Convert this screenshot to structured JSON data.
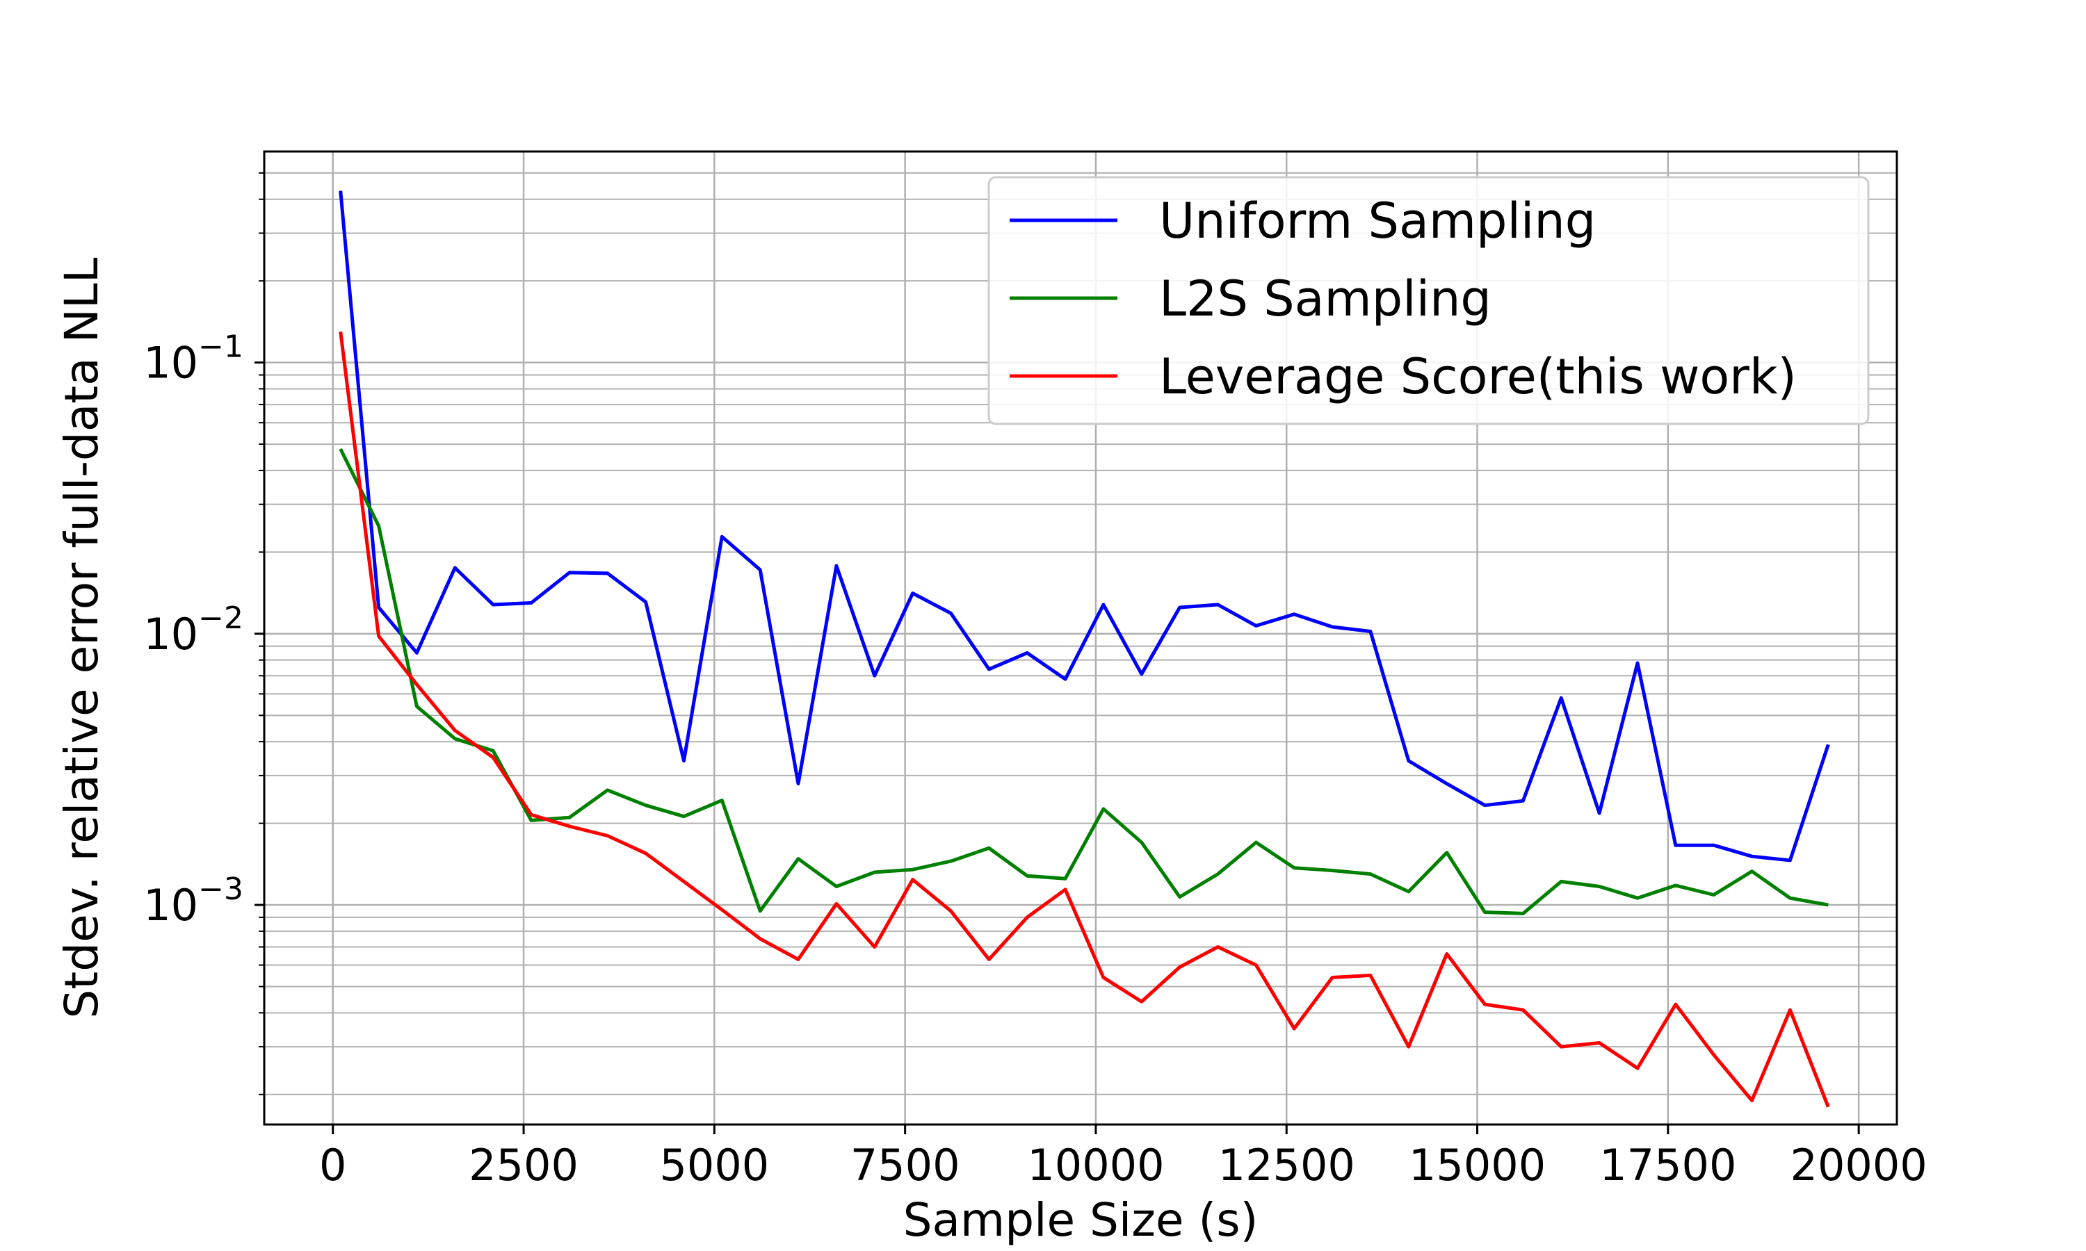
{
  "chart_data": {
    "type": "line",
    "xlabel": "Sample Size (s)",
    "ylabel": "Stdev. relative error full-data NLL",
    "xlim": [
      -900,
      20500
    ],
    "ylim": [
      0.000155,
      0.6
    ],
    "yscale": "log",
    "grid": true,
    "legend_position": "top-right",
    "x_ticks": [
      0,
      2500,
      5000,
      7500,
      10000,
      12500,
      15000,
      17500,
      20000
    ],
    "x_tick_labels": [
      "0",
      "2500",
      "5000",
      "7500",
      "10000",
      "12500",
      "15000",
      "17500",
      "20000"
    ],
    "y_ticks": [
      0.001,
      0.01,
      0.1
    ],
    "y_tick_labels": [
      {
        "base": "10",
        "exp": "−3"
      },
      {
        "base": "10",
        "exp": "−2"
      },
      {
        "base": "10",
        "exp": "−1"
      }
    ],
    "x": [
      100,
      600,
      1100,
      1600,
      2100,
      2600,
      3100,
      3600,
      4100,
      4600,
      5100,
      5600,
      6100,
      6600,
      7100,
      7600,
      8100,
      8600,
      9100,
      9600,
      10100,
      10600,
      11100,
      11600,
      12100,
      12600,
      13100,
      13600,
      14100,
      14600,
      15100,
      15600,
      16100,
      16600,
      17100,
      17600,
      18100,
      18600,
      19100,
      19600
    ],
    "series": [
      {
        "name": "Uniform Sampling",
        "color": "#0000ff",
        "values": [
          0.43,
          0.0125,
          0.0085,
          0.0175,
          0.0128,
          0.013,
          0.0168,
          0.0167,
          0.0131,
          0.0034,
          0.0228,
          0.0172,
          0.0028,
          0.0178,
          0.007,
          0.0141,
          0.0119,
          0.0074,
          0.0085,
          0.0068,
          0.0128,
          0.0071,
          0.0125,
          0.0128,
          0.0107,
          0.0118,
          0.0106,
          0.0102,
          0.0034,
          0.0028,
          0.00233,
          0.00242,
          0.0058,
          0.00218,
          0.0078,
          0.00166,
          0.00166,
          0.00151,
          0.00146,
          0.0039
        ]
      },
      {
        "name": "L2S Sampling",
        "color": "#008000",
        "values": [
          0.048,
          0.025,
          0.0054,
          0.0041,
          0.0037,
          0.00205,
          0.0021,
          0.00265,
          0.00233,
          0.00212,
          0.00243,
          0.00095,
          0.00148,
          0.00117,
          0.00132,
          0.00135,
          0.00145,
          0.00162,
          0.00128,
          0.00125,
          0.00226,
          0.0017,
          0.00107,
          0.0013,
          0.0017,
          0.00137,
          0.00134,
          0.0013,
          0.00112,
          0.00156,
          0.00094,
          0.00093,
          0.00122,
          0.00117,
          0.00106,
          0.00118,
          0.00109,
          0.00133,
          0.00106,
          0.001
        ]
      },
      {
        "name": "Leverage Score(this work)",
        "color": "#ff0000",
        "values": [
          0.13,
          0.0098,
          0.0065,
          0.0044,
          0.0035,
          0.00215,
          0.00195,
          0.0018,
          0.00155,
          0.00122,
          0.00096,
          0.00075,
          0.00063,
          0.00101,
          0.0007,
          0.00124,
          0.00095,
          0.00063,
          0.0009,
          0.00114,
          0.00054,
          0.00044,
          0.00059,
          0.0007,
          0.0006,
          0.00035,
          0.00054,
          0.00055,
          0.0003,
          0.00066,
          0.00043,
          0.00041,
          0.0003,
          0.00031,
          0.00025,
          0.00043,
          0.00028,
          0.00019,
          0.00041,
          0.00018
        ]
      }
    ]
  }
}
